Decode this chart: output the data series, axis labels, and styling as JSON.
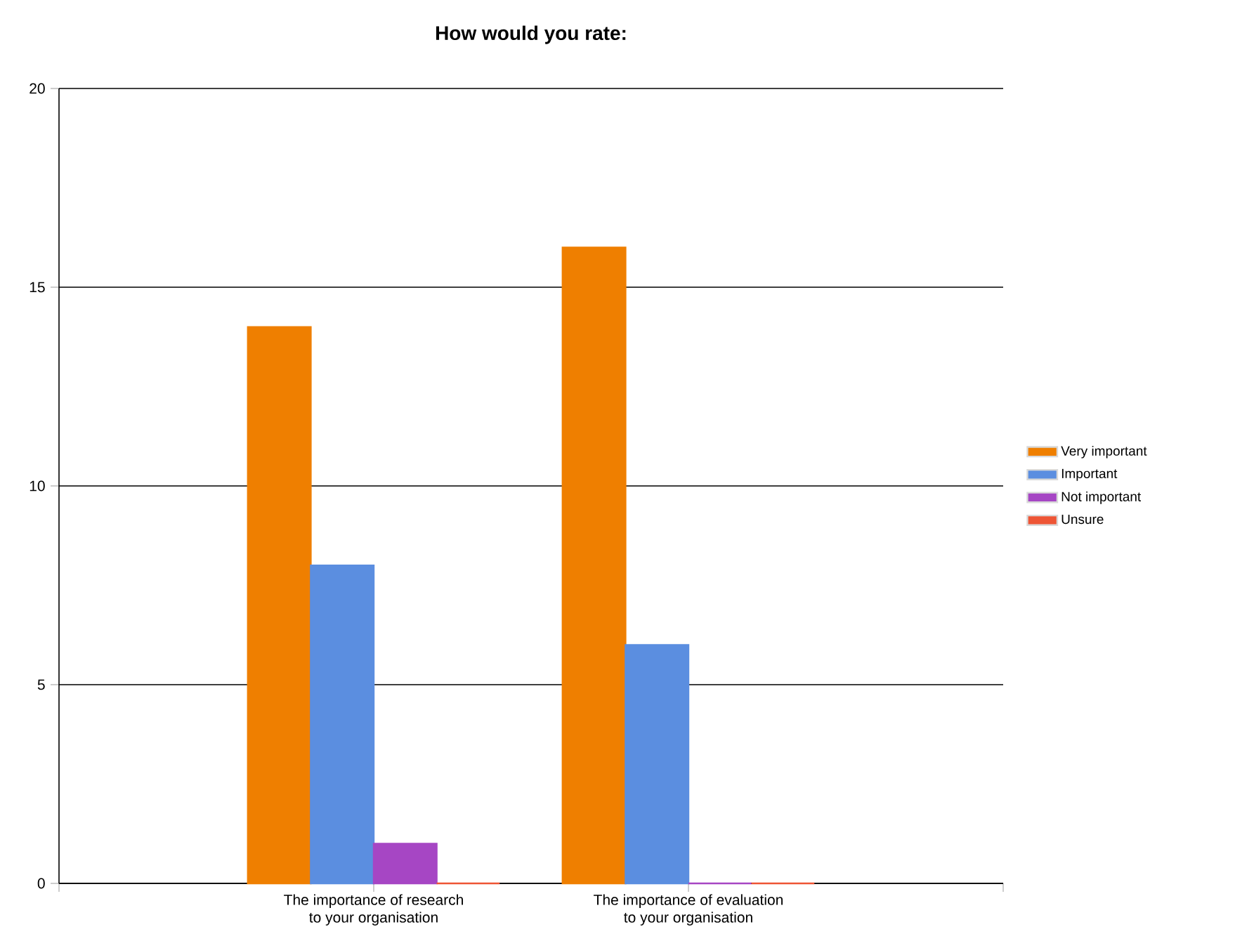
{
  "chart_data": {
    "type": "bar",
    "title": "How would you rate:",
    "categories": [
      "The importance of research to your organisation",
      "The importance of evaluation to your organisation"
    ],
    "series": [
      {
        "name": "Very important",
        "color": "#ef7f00",
        "values": [
          14,
          16
        ]
      },
      {
        "name": "Important",
        "color": "#5b8ee0",
        "values": [
          8,
          6
        ]
      },
      {
        "name": "Not important",
        "color": "#a646c4",
        "values": [
          1,
          0
        ]
      },
      {
        "name": "Unsure",
        "color": "#ee5535",
        "values": [
          0,
          0
        ]
      }
    ],
    "ylim": [
      0,
      20
    ],
    "yticks": [
      0,
      5,
      10,
      15,
      20
    ],
    "grid": "y",
    "legend": "right"
  }
}
